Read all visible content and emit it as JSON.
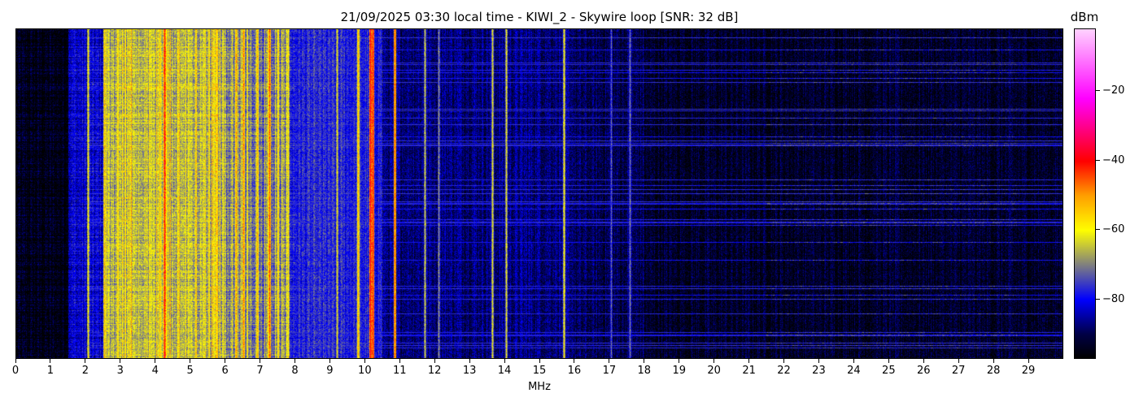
{
  "chart_data": {
    "type": "heatmap",
    "title": "21/09/2025 03:30 local time - KIWI_2 - Skywire loop [SNR: 32 dB]",
    "xlabel": "MHz",
    "ylabel": "",
    "xlim": [
      0,
      30
    ],
    "x_ticks": [
      "0",
      "1",
      "2",
      "3",
      "4",
      "5",
      "6",
      "7",
      "8",
      "9",
      "10",
      "11",
      "12",
      "13",
      "14",
      "15",
      "16",
      "17",
      "18",
      "19",
      "20",
      "21",
      "22",
      "23",
      "24",
      "25",
      "26",
      "27",
      "28",
      "29"
    ],
    "colorbar": {
      "label": "dBm",
      "range": [
        -97,
        -2
      ],
      "ticks": [
        "−20",
        "−40",
        "−60",
        "−80"
      ],
      "tick_values": [
        -20,
        -40,
        -60,
        -80
      ],
      "colormap": [
        "#000000",
        "#000060",
        "#0000ff",
        "#808080",
        "#ffff00",
        "#ffa000",
        "#ff0000",
        "#ff00ff",
        "#ffd0ff"
      ]
    },
    "noise_floor_bands": [
      {
        "from_mhz": 0,
        "to_mhz": 1.5,
        "dbm": -95
      },
      {
        "from_mhz": 1.5,
        "to_mhz": 2.5,
        "dbm": -82
      },
      {
        "from_mhz": 2.5,
        "to_mhz": 6.0,
        "dbm": -66
      },
      {
        "from_mhz": 6.0,
        "to_mhz": 7.8,
        "dbm": -70
      },
      {
        "from_mhz": 7.8,
        "to_mhz": 10.5,
        "dbm": -78
      },
      {
        "from_mhz": 10.5,
        "to_mhz": 16,
        "dbm": -87
      },
      {
        "from_mhz": 16,
        "to_mhz": 18,
        "dbm": -90
      },
      {
        "from_mhz": 18,
        "to_mhz": 30,
        "dbm": -93
      }
    ],
    "carriers": [
      {
        "mhz": 2.05,
        "dbm": -60
      },
      {
        "mhz": 4.25,
        "dbm": -40
      },
      {
        "mhz": 6.3,
        "dbm": -50
      },
      {
        "mhz": 6.5,
        "dbm": -48
      },
      {
        "mhz": 6.9,
        "dbm": -52
      },
      {
        "mhz": 7.25,
        "dbm": -45
      },
      {
        "mhz": 7.8,
        "dbm": -58
      },
      {
        "mhz": 9.2,
        "dbm": -62
      },
      {
        "mhz": 9.8,
        "dbm": -52
      },
      {
        "mhz": 10.15,
        "dbm": -38
      },
      {
        "mhz": 10.22,
        "dbm": -40
      },
      {
        "mhz": 10.85,
        "dbm": -45
      },
      {
        "mhz": 11.7,
        "dbm": -64
      },
      {
        "mhz": 12.1,
        "dbm": -68
      },
      {
        "mhz": 13.65,
        "dbm": -62
      },
      {
        "mhz": 14.05,
        "dbm": -62
      },
      {
        "mhz": 15.7,
        "dbm": -60
      },
      {
        "mhz": 17.05,
        "dbm": -72
      },
      {
        "mhz": 17.6,
        "dbm": -70
      }
    ],
    "interference_band": {
      "from_mhz": 21.5,
      "to_mhz": 28.7,
      "dbm": -70
    }
  }
}
